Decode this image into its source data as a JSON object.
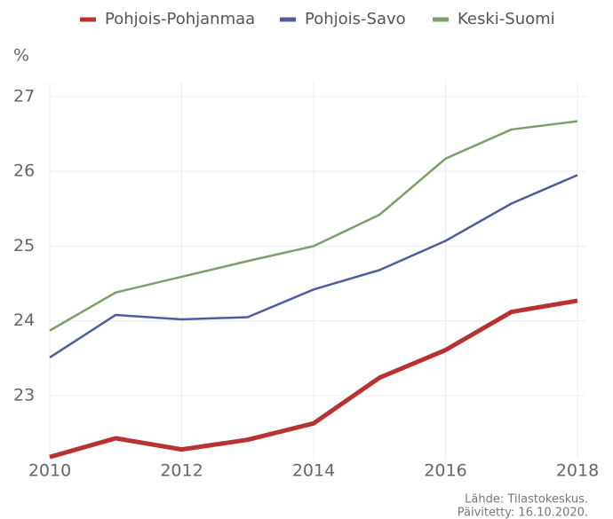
{
  "chart_data": {
    "type": "line",
    "y_label": "%",
    "x": [
      2010,
      2011,
      2012,
      2013,
      2014,
      2015,
      2016,
      2017,
      2018
    ],
    "series": [
      {
        "name": "Pohjois-Pohjanmaa",
        "color": "#b83232",
        "width": 5,
        "values": [
          22.18,
          22.43,
          22.28,
          22.41,
          22.63,
          23.24,
          23.61,
          24.12,
          24.27
        ]
      },
      {
        "name": "Pohjois-Savo",
        "color": "#4f5da0",
        "width": 2.5,
        "values": [
          23.51,
          24.08,
          24.02,
          24.05,
          24.42,
          24.68,
          25.07,
          25.57,
          25.95
        ]
      },
      {
        "name": "Keski-Suomi",
        "color": "#7f9e6d",
        "width": 2.5,
        "values": [
          23.87,
          24.38,
          24.59,
          24.8,
          25.0,
          25.42,
          26.17,
          26.56,
          26.67
        ]
      }
    ],
    "xlim": [
      2010,
      2018
    ],
    "xticks": [
      2010,
      2012,
      2014,
      2016,
      2018
    ],
    "ylim": [
      22.15,
      27.2
    ],
    "yticks": [
      23,
      24,
      25,
      26,
      27
    ],
    "grid": true,
    "legend": "top",
    "notes": [
      "Lähde: Tilastokeskus.",
      "Päivitetty: 16.10.2020."
    ]
  }
}
